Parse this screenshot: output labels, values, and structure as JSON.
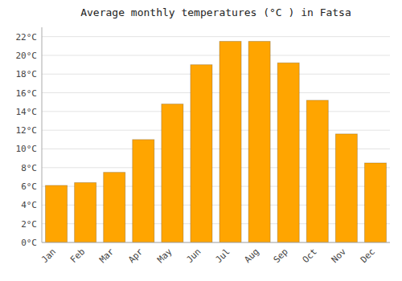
{
  "chart_data": {
    "type": "bar",
    "title": "Average monthly temperatures (°C ) in Fatsa",
    "categories": [
      "Jan",
      "Feb",
      "Mar",
      "Apr",
      "May",
      "Jun",
      "Jul",
      "Aug",
      "Sep",
      "Oct",
      "Nov",
      "Dec"
    ],
    "values": [
      6.1,
      6.4,
      7.5,
      11.0,
      14.8,
      19.0,
      21.5,
      21.5,
      19.2,
      15.2,
      11.6,
      8.5
    ],
    "color": "#FFA500",
    "ylim": [
      0,
      23
    ],
    "yticks": [
      {
        "value": 0,
        "label": "0°C"
      },
      {
        "value": 2,
        "label": "2°C"
      },
      {
        "value": 4,
        "label": "4°C"
      },
      {
        "value": 6,
        "label": "6°C"
      },
      {
        "value": 8,
        "label": "8°C"
      },
      {
        "value": 10,
        "label": "10°C"
      },
      {
        "value": 12,
        "label": "12°C"
      },
      {
        "value": 14,
        "label": "14°C"
      },
      {
        "value": 16,
        "label": "16°C"
      },
      {
        "value": 18,
        "label": "18°C"
      },
      {
        "value": 20,
        "label": "20°C"
      },
      {
        "value": 22,
        "label": "22°C"
      }
    ],
    "grid": true
  }
}
